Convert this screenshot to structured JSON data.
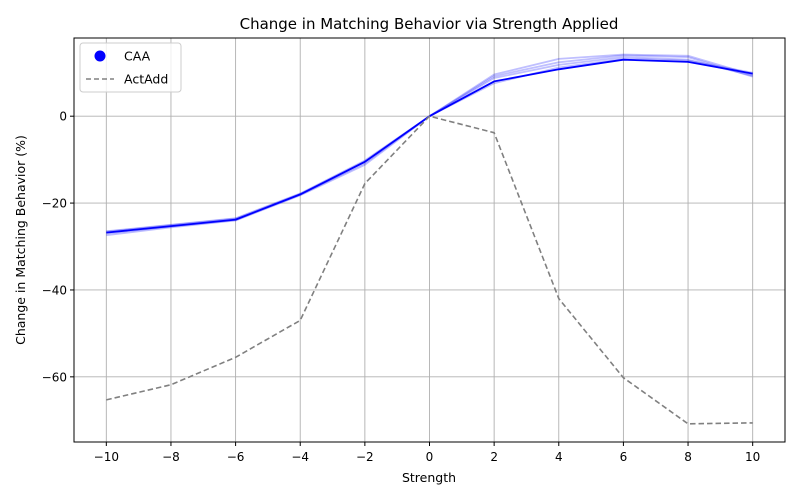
{
  "chart_data": {
    "type": "line",
    "title": "Change in Matching Behavior via Strength Applied",
    "xlabel": "Strength",
    "ylabel": "Change in Matching Behavior (%)",
    "xlim": [
      -11,
      11
    ],
    "ylim": [
      -75,
      18
    ],
    "x_ticks": [
      -10,
      -8,
      -6,
      -4,
      -2,
      0,
      2,
      4,
      6,
      8,
      10
    ],
    "y_ticks": [
      -60,
      -40,
      -20,
      0
    ],
    "grid": true,
    "legend_position": "top-left",
    "x": [
      -10,
      -8,
      -6,
      -4,
      -2,
      0,
      2,
      4,
      6,
      8,
      10
    ],
    "series": [
      {
        "name": "CAA",
        "color": "#0000ff",
        "style": "solid",
        "legend_marker": "circle",
        "values": [
          -26.8,
          -25.3,
          -23.8,
          -18.0,
          -10.5,
          0.0,
          8.0,
          10.8,
          13.0,
          12.5,
          9.8
        ]
      },
      {
        "name": "ActAdd",
        "color": "#808080",
        "style": "dashed",
        "values": [
          -65.3,
          -61.8,
          -55.5,
          -47.0,
          -15.5,
          0.0,
          -3.8,
          -42.0,
          -60.2,
          -70.8,
          -70.6
        ]
      }
    ],
    "caa_spread_lines": [
      {
        "values": [
          -27.4,
          -25.6,
          -24.0,
          -18.2,
          -11.2,
          0.0,
          8.8,
          11.8,
          13.6,
          13.0,
          9.3
        ]
      },
      {
        "values": [
          -26.5,
          -25.0,
          -23.5,
          -17.8,
          -10.2,
          0.0,
          9.2,
          12.4,
          14.0,
          13.6,
          9.1
        ]
      },
      {
        "values": [
          -27.0,
          -25.4,
          -23.9,
          -18.1,
          -10.8,
          0.0,
          7.6,
          11.2,
          13.2,
          12.8,
          10.0
        ]
      },
      {
        "values": [
          -26.6,
          -25.1,
          -23.6,
          -17.9,
          -10.4,
          0.0,
          9.6,
          13.2,
          14.2,
          13.9,
          9.5
        ]
      }
    ]
  }
}
